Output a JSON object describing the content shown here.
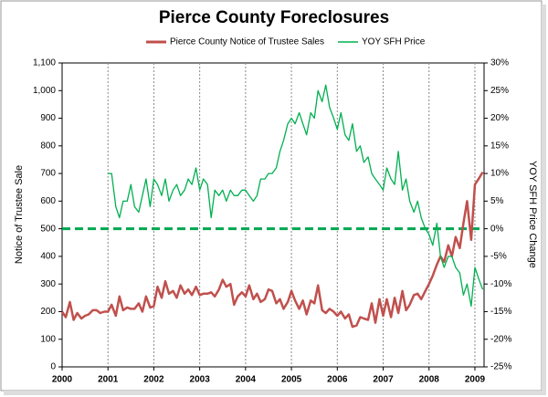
{
  "chart_data": {
    "type": "line",
    "title": "Pierce County Foreclosures",
    "ylabel": "Notice of Trustee Sale",
    "y2label": "YOY SFH Price Change",
    "x": [
      2000.0,
      2000.08,
      2000.17,
      2000.25,
      2000.33,
      2000.42,
      2000.5,
      2000.58,
      2000.67,
      2000.75,
      2000.83,
      2000.92,
      2001.0,
      2001.08,
      2001.17,
      2001.25,
      2001.33,
      2001.42,
      2001.5,
      2001.58,
      2001.67,
      2001.75,
      2001.83,
      2001.92,
      2002.0,
      2002.08,
      2002.17,
      2002.25,
      2002.33,
      2002.42,
      2002.5,
      2002.58,
      2002.67,
      2002.75,
      2002.83,
      2002.92,
      2003.0,
      2003.08,
      2003.17,
      2003.25,
      2003.33,
      2003.42,
      2003.5,
      2003.58,
      2003.67,
      2003.75,
      2003.83,
      2003.92,
      2004.0,
      2004.08,
      2004.17,
      2004.25,
      2004.33,
      2004.42,
      2004.5,
      2004.58,
      2004.67,
      2004.75,
      2004.83,
      2004.92,
      2005.0,
      2005.08,
      2005.17,
      2005.25,
      2005.33,
      2005.42,
      2005.5,
      2005.58,
      2005.67,
      2005.75,
      2005.83,
      2005.92,
      2006.0,
      2006.08,
      2006.17,
      2006.25,
      2006.33,
      2006.42,
      2006.5,
      2006.58,
      2006.67,
      2006.75,
      2006.83,
      2006.92,
      2007.0,
      2007.08,
      2007.17,
      2007.25,
      2007.33,
      2007.42,
      2007.5,
      2007.58,
      2007.67,
      2007.75,
      2007.83,
      2007.92,
      2008.0,
      2008.08,
      2008.17,
      2008.25,
      2008.33,
      2008.42,
      2008.5,
      2008.58,
      2008.67,
      2008.75,
      2008.83,
      2008.92,
      2009.0,
      2009.08,
      2009.17
    ],
    "series": [
      {
        "name": "Pierce County Notice of Trustee Sales",
        "color": "#c0504d",
        "axis": "y",
        "values": [
          200,
          180,
          235,
          170,
          195,
          175,
          185,
          190,
          205,
          205,
          195,
          200,
          200,
          225,
          185,
          255,
          205,
          215,
          210,
          210,
          230,
          200,
          255,
          215,
          220,
          290,
          250,
          310,
          265,
          275,
          250,
          295,
          265,
          280,
          260,
          290,
          260,
          265,
          265,
          270,
          255,
          280,
          315,
          290,
          300,
          225,
          255,
          270,
          255,
          295,
          245,
          265,
          235,
          245,
          280,
          275,
          230,
          245,
          210,
          235,
          275,
          240,
          210,
          240,
          190,
          240,
          230,
          295,
          205,
          195,
          210,
          200,
          185,
          200,
          175,
          190,
          145,
          150,
          180,
          175,
          170,
          230,
          160,
          245,
          185,
          245,
          180,
          250,
          195,
          275,
          205,
          225,
          260,
          265,
          245,
          275,
          300,
          330,
          370,
          400,
          380,
          440,
          400,
          470,
          430,
          520,
          600,
          460,
          660,
          680,
          705
        ]
      },
      {
        "name": "YOY SFH Price",
        "color": "#00b050",
        "axis": "y2",
        "values": [
          null,
          null,
          null,
          null,
          null,
          null,
          null,
          null,
          null,
          null,
          null,
          null,
          10,
          10,
          4,
          2,
          5,
          5,
          8,
          4,
          3,
          6,
          9,
          4,
          9,
          8,
          6,
          9,
          5,
          7,
          8,
          6,
          7,
          9,
          8,
          11,
          7,
          9,
          8,
          2,
          7,
          6,
          7,
          5,
          7,
          6,
          6,
          7,
          7,
          6,
          5,
          6,
          9,
          9,
          10,
          10,
          11,
          14,
          16,
          19,
          20,
          19,
          21,
          19,
          17,
          21,
          20,
          25,
          23,
          26,
          22,
          20,
          18,
          21,
          17,
          16,
          19,
          14,
          15,
          12,
          13,
          10,
          9,
          8,
          7,
          11,
          9,
          8,
          14,
          7,
          9,
          5,
          3,
          5,
          2,
          0,
          -1,
          -3,
          1,
          -5,
          -7,
          -5,
          -5,
          -7,
          -8,
          -12,
          -10,
          -14,
          -7,
          -9,
          -11
        ]
      }
    ],
    "xlim": [
      2000,
      2009.2
    ],
    "xticks": [
      2000,
      2001,
      2002,
      2003,
      2004,
      2005,
      2006,
      2007,
      2008,
      2009
    ],
    "ylim": [
      0,
      1100
    ],
    "yticks": [
      0,
      100,
      200,
      300,
      400,
      500,
      600,
      700,
      800,
      900,
      {
        "value": 1000,
        "label": "1,000"
      },
      {
        "value": 1100,
        "label": "1,100"
      }
    ],
    "y2lim": [
      -25,
      30
    ],
    "y2ticks": [
      {
        "value": -25,
        "label": "-25%"
      },
      {
        "value": -20,
        "label": "-20%"
      },
      {
        "value": -15,
        "label": "-15%"
      },
      {
        "value": -10,
        "label": "-10%"
      },
      {
        "value": -5,
        "label": "-5%"
      },
      {
        "value": 0,
        "label": "0%"
      },
      {
        "value": 5,
        "label": "5%"
      },
      {
        "value": 10,
        "label": "10%"
      },
      {
        "value": 15,
        "label": "15%"
      },
      {
        "value": 20,
        "label": "20%"
      },
      {
        "value": 25,
        "label": "25%"
      },
      {
        "value": 30,
        "label": "30%"
      }
    ],
    "reference_line": {
      "value": 0,
      "axis": "y2",
      "color": "#00a651"
    },
    "xgrid": true,
    "legend": "top"
  }
}
